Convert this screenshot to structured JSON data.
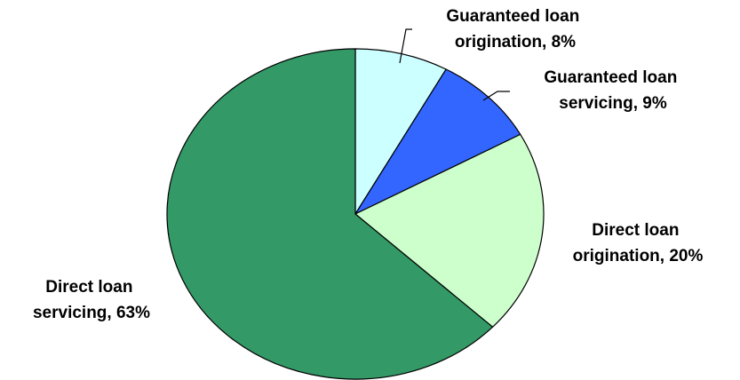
{
  "chart_data": {
    "type": "pie",
    "title": "",
    "slices": [
      {
        "name": "Guaranteed loan origination",
        "value": 8,
        "display_lines": [
          "Guaranteed loan",
          "origination, 8%"
        ],
        "color": "#ccffff"
      },
      {
        "name": "Guaranteed loan servicing",
        "value": 9,
        "display_lines": [
          "Guaranteed loan",
          "servicing, 9%"
        ],
        "color": "#3366ff"
      },
      {
        "name": "Direct loan origination",
        "value": 20,
        "display_lines": [
          "Direct loan",
          "origination, 20%"
        ],
        "color": "#ccffcc"
      },
      {
        "name": "Direct loan servicing",
        "value": 63,
        "display_lines": [
          "Direct loan",
          "servicing, 63%"
        ],
        "color": "#339966"
      }
    ],
    "start_angle_deg": 0,
    "direction": "clockwise",
    "legend": "none"
  }
}
